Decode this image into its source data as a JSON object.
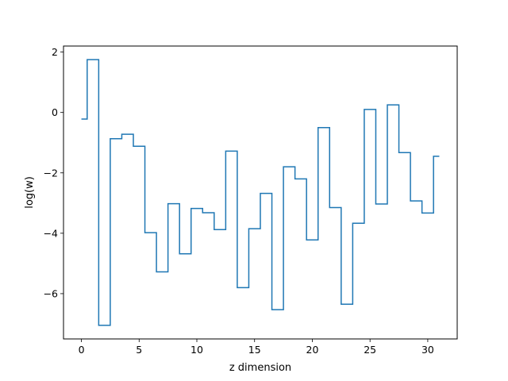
{
  "chart_data": {
    "type": "line",
    "drawstyle": "steps-mid",
    "title": "",
    "xlabel": "z dimension",
    "ylabel": "log(w)",
    "xlim": [
      -1.55,
      32.55
    ],
    "ylim": [
      -7.5,
      2.2
    ],
    "xticks": [
      0,
      5,
      10,
      15,
      20,
      25,
      30
    ],
    "yticks": [
      2,
      0,
      -2,
      -4,
      -6
    ],
    "ytick_labels": [
      "2",
      "0",
      "−2",
      "−4",
      "−6"
    ],
    "grid": false,
    "legend": "none",
    "series_color": "#1f77b4",
    "x": [
      0,
      1,
      2,
      3,
      4,
      5,
      6,
      7,
      8,
      9,
      10,
      11,
      12,
      13,
      14,
      15,
      16,
      17,
      18,
      19,
      20,
      21,
      22,
      23,
      24,
      25,
      26,
      27,
      28,
      29,
      30,
      31
    ],
    "values": [
      -0.22,
      1.75,
      -7.05,
      -0.87,
      -0.72,
      -1.12,
      -3.98,
      -5.28,
      -3.02,
      -4.68,
      -3.18,
      -3.32,
      -3.88,
      -1.28,
      -5.8,
      -3.85,
      -2.68,
      -6.53,
      -1.8,
      -2.2,
      -4.22,
      -0.5,
      -3.15,
      -6.35,
      -3.67,
      0.1,
      -3.03,
      0.25,
      -1.33,
      -2.93,
      -3.33,
      -1.45
    ]
  }
}
